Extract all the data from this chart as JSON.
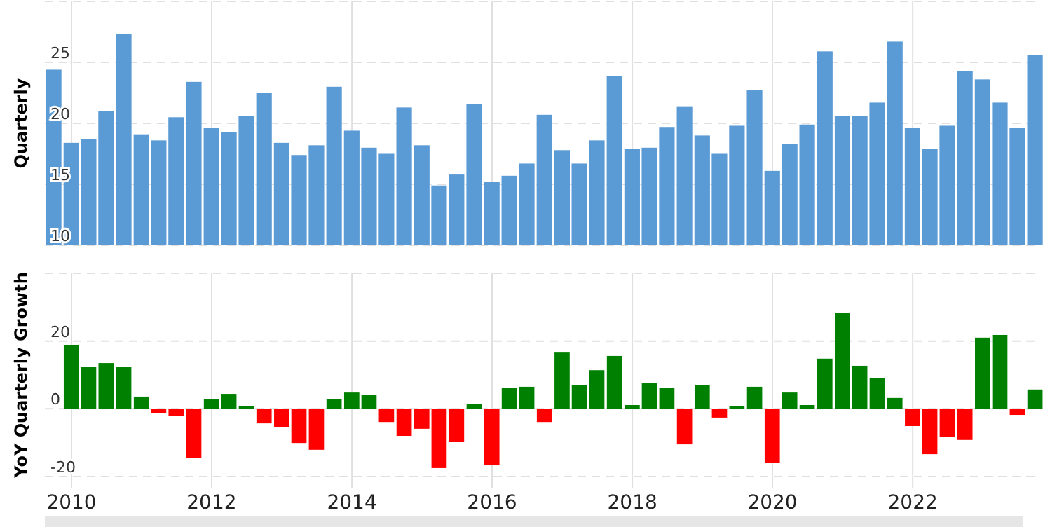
{
  "chart_data": [
    {
      "type": "bar",
      "ylabel": "Quarterly",
      "x": [
        "2009-09-30",
        "2009-12-31",
        "2010-03-31",
        "2010-06-30",
        "2010-09-30",
        "2010-12-31",
        "2011-03-31",
        "2011-06-30",
        "2011-09-30",
        "2011-12-31",
        "2012-03-31",
        "2012-06-30",
        "2012-09-30",
        "2012-12-31",
        "2013-03-31",
        "2013-06-30",
        "2013-09-30",
        "2013-12-31",
        "2014-03-31",
        "2014-06-30",
        "2014-09-30",
        "2014-12-31",
        "2015-03-31",
        "2015-06-30",
        "2015-09-30",
        "2015-12-31",
        "2016-03-31",
        "2016-06-30",
        "2016-09-30",
        "2016-12-31",
        "2017-03-31",
        "2017-06-30",
        "2017-09-30",
        "2017-12-31",
        "2018-03-31",
        "2018-06-30",
        "2018-09-30",
        "2018-12-31",
        "2019-03-31",
        "2019-06-30",
        "2019-09-30",
        "2019-12-31",
        "2020-03-31",
        "2020-06-30",
        "2020-09-30",
        "2020-12-31",
        "2021-03-31",
        "2021-06-30",
        "2021-09-30",
        "2021-12-31",
        "2022-03-31",
        "2022-06-30",
        "2022-09-30",
        "2022-12-31",
        "2023-03-31",
        "2023-06-30",
        "2023-09-30"
      ],
      "values": [
        24.4,
        18.4,
        18.7,
        21.0,
        27.3,
        19.1,
        18.6,
        20.5,
        23.4,
        19.6,
        19.3,
        20.6,
        22.5,
        18.4,
        17.4,
        18.2,
        23.0,
        19.4,
        18.0,
        17.5,
        21.3,
        18.2,
        14.9,
        15.8,
        21.6,
        15.2,
        15.7,
        16.7,
        20.7,
        17.8,
        16.7,
        18.6,
        23.9,
        17.9,
        18.0,
        19.7,
        21.4,
        19.0,
        17.5,
        19.8,
        22.7,
        16.1,
        18.3,
        19.9,
        25.9,
        20.6,
        20.6,
        21.7,
        26.7,
        19.6,
        17.9,
        19.8,
        24.3,
        23.6,
        21.7,
        19.6,
        25.6
      ],
      "color": "#5b9bd5",
      "xlim": [
        "2009-08-15",
        "2023-10-27"
      ],
      "xticks": [
        "2010",
        "2012",
        "2014",
        "2016",
        "2018",
        "2020",
        "2022"
      ],
      "ylim": [
        10,
        30
      ],
      "yticks": [
        10,
        15,
        20,
        25,
        {
          "value": 30,
          "label": null
        }
      ],
      "grid": true,
      "tick_labels": "y"
    },
    {
      "type": "bar",
      "ylabel": "YoY Quarterly Growth",
      "x": [
        "2009-12-31",
        "2010-03-31",
        "2010-06-30",
        "2010-09-30",
        "2010-12-31",
        "2011-03-31",
        "2011-06-30",
        "2011-09-30",
        "2011-12-31",
        "2012-03-31",
        "2012-06-30",
        "2012-09-30",
        "2012-12-31",
        "2013-03-31",
        "2013-06-30",
        "2013-09-30",
        "2013-12-31",
        "2014-03-31",
        "2014-06-30",
        "2014-09-30",
        "2014-12-31",
        "2015-03-31",
        "2015-06-30",
        "2015-09-30",
        "2015-12-31",
        "2016-03-31",
        "2016-06-30",
        "2016-09-30",
        "2016-12-31",
        "2017-03-31",
        "2017-06-30",
        "2017-09-30",
        "2017-12-31",
        "2018-03-31",
        "2018-06-30",
        "2018-09-30",
        "2018-12-31",
        "2019-03-31",
        "2019-06-30",
        "2019-09-30",
        "2019-12-31",
        "2020-03-31",
        "2020-06-30",
        "2020-09-30",
        "2020-12-31",
        "2021-03-31",
        "2021-06-30",
        "2021-09-30",
        "2021-12-31",
        "2022-03-31",
        "2022-06-30",
        "2022-09-30",
        "2022-12-31",
        "2023-03-31",
        "2023-06-30",
        "2023-09-30"
      ],
      "values": [
        18.9,
        12.3,
        13.5,
        12.3,
        3.6,
        -1.2,
        -2.2,
        -14.6,
        2.8,
        4.4,
        0.7,
        -4.3,
        -5.5,
        -10.1,
        -12.1,
        2.8,
        4.8,
        4.0,
        -3.9,
        -8.0,
        -5.9,
        -17.5,
        -9.7,
        1.5,
        -16.7,
        6.1,
        6.5,
        -3.9,
        16.8,
        6.9,
        11.4,
        15.6,
        1.1,
        7.7,
        6.1,
        -10.5,
        6.9,
        -2.6,
        0.7,
        6.5,
        -15.9,
        4.8,
        1.1,
        14.8,
        28.4,
        12.7,
        9.0,
        3.2,
        -5.1,
        -13.4,
        -8.4,
        -9.2,
        21.0,
        21.8,
        -1.8,
        5.7
      ],
      "colors": [
        "#008000",
        "#008000",
        "#008000",
        "#008000",
        "#008000",
        "#ff0000",
        "#ff0000",
        "#ff0000",
        "#008000",
        "#008000",
        "#008000",
        "#ff0000",
        "#ff0000",
        "#ff0000",
        "#ff0000",
        "#008000",
        "#008000",
        "#008000",
        "#ff0000",
        "#ff0000",
        "#ff0000",
        "#ff0000",
        "#ff0000",
        "#008000",
        "#ff0000",
        "#008000",
        "#008000",
        "#ff0000",
        "#008000",
        "#008000",
        "#008000",
        "#008000",
        "#008000",
        "#008000",
        "#008000",
        "#ff0000",
        "#008000",
        "#ff0000",
        "#008000",
        "#008000",
        "#ff0000",
        "#008000",
        "#008000",
        "#008000",
        "#008000",
        "#008000",
        "#008000",
        "#008000",
        "#ff0000",
        "#ff0000",
        "#ff0000",
        "#ff0000",
        "#008000",
        "#008000",
        "#ff0000",
        "#008000"
      ],
      "xlim": [
        "2009-08-15",
        "2023-10-27"
      ],
      "xticks": [
        "2010",
        "2012",
        "2014",
        "2016",
        "2018",
        "2020",
        "2022"
      ],
      "ylim": [
        -20,
        40
      ],
      "yticks": [
        -20,
        0,
        20,
        {
          "value": 40,
          "label": null
        }
      ],
      "grid": true
    }
  ]
}
